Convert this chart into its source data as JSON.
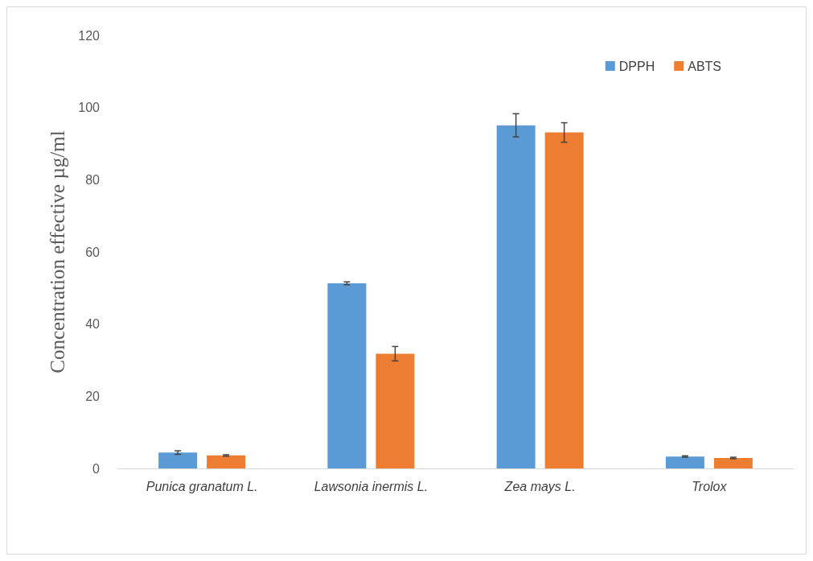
{
  "chart_data": {
    "type": "bar",
    "ylabel": "Concentration effective µg/ml",
    "categories": [
      "Punica granatum L.",
      "Lawsonia inermis L.",
      "Zea mays L.",
      "Trolox"
    ],
    "series": [
      {
        "name": "DPPH",
        "color": "#5b9bd5",
        "values": [
          4.4,
          51.3,
          95.1,
          3.3
        ],
        "errors": [
          0.5,
          0.4,
          3.2,
          0.2
        ]
      },
      {
        "name": "ABTS",
        "color": "#ed7d31",
        "values": [
          3.6,
          31.8,
          93.1,
          2.9
        ],
        "errors": [
          0.2,
          2.0,
          2.7,
          0.2
        ]
      }
    ],
    "ylim": [
      0,
      120
    ],
    "yticks": [
      0,
      20,
      40,
      60,
      80,
      100,
      120
    ],
    "grid": false,
    "legend": "top right"
  }
}
